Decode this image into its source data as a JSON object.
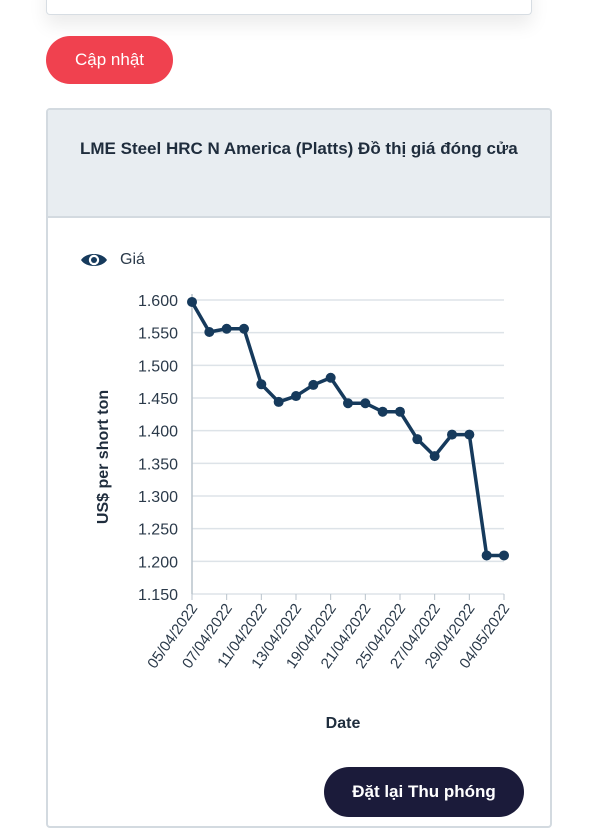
{
  "update_button": {
    "label": "Cập nhật"
  },
  "chart_card": {
    "title": "LME Steel HRC N America (Platts) Đồ thị giá đóng cửa",
    "legend_label": "Giá",
    "reset_zoom_label": "Đặt lại Thu phóng"
  },
  "colors": {
    "accent_red": "#f0414f",
    "series": "#163a5c",
    "dark_button": "#1b1b3a"
  },
  "icons": {
    "legend": "eye-icon"
  },
  "chart_data": {
    "type": "line",
    "xlabel": "Date",
    "ylabel": "US$ per short ton",
    "ylim": [
      1150,
      1600
    ],
    "y_ticks": [
      "1.600",
      "1.550",
      "1.500",
      "1.450",
      "1.400",
      "1.350",
      "1.300",
      "1.250",
      "1.200",
      "1.150"
    ],
    "y_tick_values": [
      1600,
      1550,
      1500,
      1450,
      1400,
      1350,
      1300,
      1250,
      1200,
      1150
    ],
    "x_tick_labels": [
      "05/04/2022",
      "07/04/2022",
      "11/04/2022",
      "13/04/2022",
      "19/04/2022",
      "21/04/2022",
      "25/04/2022",
      "27/04/2022",
      "29/04/2022",
      "04/05/2022"
    ],
    "x_tick_indices": [
      0,
      2,
      4,
      6,
      8,
      10,
      12,
      14,
      16,
      18
    ],
    "grid": true,
    "series": [
      {
        "name": "Giá",
        "values": [
          1597,
          1551,
          1556,
          1556,
          1471,
          1444,
          1453,
          1470,
          1481,
          1442,
          1442,
          1429,
          1429,
          1387,
          1361,
          1394,
          1394,
          1209,
          1209
        ]
      }
    ]
  }
}
